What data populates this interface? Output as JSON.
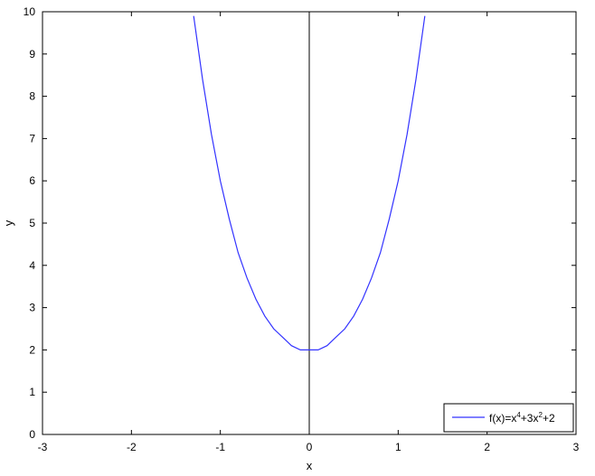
{
  "chart_data": {
    "type": "line",
    "title": "",
    "xlabel": "x",
    "ylabel": "y",
    "xlim": [
      -3,
      3
    ],
    "ylim": [
      0,
      10
    ],
    "xticks": [
      -3,
      -2,
      -1,
      0,
      1,
      2,
      3
    ],
    "yticks": [
      0,
      1,
      2,
      3,
      4,
      5,
      6,
      7,
      8,
      9,
      10
    ],
    "grid": false,
    "legend_position": "bottom-right",
    "series": [
      {
        "name": "f(x)=x^4+3x^2+2",
        "color": "#3333ff",
        "x": [
          -1.3,
          -1.2,
          -1.1,
          -1.0,
          -0.9,
          -0.8,
          -0.7,
          -0.6,
          -0.5,
          -0.4,
          -0.3,
          -0.2,
          -0.1,
          0.0,
          0.1,
          0.2,
          0.3,
          0.4,
          0.5,
          0.6,
          0.7,
          0.8,
          0.9,
          1.0,
          1.1,
          1.2,
          1.3
        ],
        "y": [
          9.9,
          8.4,
          7.1,
          6.0,
          5.1,
          4.3,
          3.7,
          3.2,
          2.8,
          2.5,
          2.3,
          2.1,
          2.0,
          2.0,
          2.0,
          2.1,
          2.3,
          2.5,
          2.8,
          3.2,
          3.7,
          4.3,
          5.1,
          6.0,
          7.1,
          8.4,
          9.9
        ]
      }
    ],
    "reference_lines": [
      {
        "axis": "x",
        "value": 0,
        "color": "#000000"
      }
    ],
    "legend": {
      "base": "f(x)=x",
      "sup1": "4",
      "mid": "+3x",
      "sup2": "2",
      "tail": "+2"
    }
  }
}
